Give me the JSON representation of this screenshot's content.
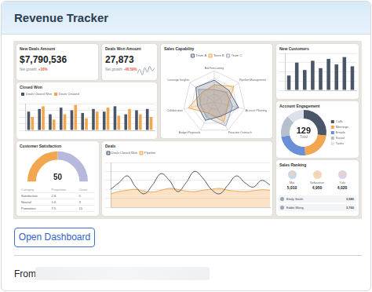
{
  "header": {
    "title": "Revenue Tracker"
  },
  "dashboard": {
    "kpis": [
      {
        "title": "New Deals Amount",
        "value": "$7,790,536",
        "growth_label": "Net growth",
        "growth": "+16%"
      },
      {
        "title": "Deals Won Amount",
        "value": "27,873",
        "growth_label": "Net growth",
        "growth": "-46.59%"
      }
    ],
    "satisfaction_table": {
      "columns": [
        "Category",
        "Proportion",
        "Count"
      ],
      "rows": [
        [
          "Satisfaction",
          "2.6",
          "5"
        ],
        [
          "Neutral",
          "1.6",
          "3"
        ],
        [
          "Promoters",
          "7.5",
          "15"
        ]
      ]
    },
    "sales_ranking": {
      "title": "Sales Ranking",
      "top": [
        {
          "name": "Mia",
          "amount": "5,010"
        },
        {
          "name": "Sebastian",
          "amount": "4,950"
        },
        {
          "name": "Yuki",
          "amount": "4,020"
        }
      ],
      "list": [
        {
          "name": "Emily Smith",
          "amount": "3,980"
        },
        {
          "name": "Eddie Wong",
          "amount": "3,760"
        }
      ]
    }
  },
  "chart_data": [
    {
      "type": "line",
      "categories": [
        null,
        null,
        null,
        null,
        null,
        null,
        null,
        null
      ],
      "values": [
        3,
        6,
        2,
        7,
        4,
        8,
        5,
        7
      ],
      "color": "#9aa3ad",
      "ylim": [
        0,
        10
      ],
      "grid": false,
      "tick_labels": false
    },
    {
      "type": "bar",
      "title": "Closed Won",
      "categories": [
        null,
        null,
        null,
        null,
        null,
        null,
        null,
        null,
        null,
        null,
        null,
        null
      ],
      "series": [
        {
          "name": "Deals Closed Won",
          "color": "#4a5568",
          "values": [
            70,
            80,
            60,
            85,
            75,
            65,
            80,
            70,
            90,
            60,
            75,
            80
          ]
        },
        {
          "name": "Deals Created",
          "color": "#f2a650",
          "values": [
            50,
            90,
            40,
            60,
            95,
            45,
            70,
            85,
            55,
            80,
            60,
            50
          ]
        }
      ],
      "ylim": [
        0,
        100
      ],
      "yticks": [
        0,
        25,
        50,
        75,
        100
      ],
      "grid": true,
      "legend": "top",
      "tick_labels": false
    },
    {
      "type": "radar",
      "title": "Sales Capability",
      "categories": [
        "Bid Forecasting",
        "Pipeline Management",
        "Account Planning",
        "Proactive Outreach",
        "Budget Proposals",
        "Collaboration",
        "Leverage Insights"
      ],
      "series": [
        {
          "name": "Team A",
          "color": "#5a6b85",
          "values": [
            70,
            60,
            80,
            50,
            65,
            55,
            75
          ]
        },
        {
          "name": "Team B",
          "color": "#f2a650",
          "values": [
            55,
            80,
            45,
            70,
            40,
            85,
            50
          ]
        },
        {
          "name": "Team C",
          "color": "#a0a8b8",
          "values": [
            40,
            50,
            60,
            85,
            55,
            45,
            65
          ]
        }
      ],
      "ylim": [
        0,
        100
      ],
      "yticks": [
        0,
        25,
        50,
        75,
        100
      ],
      "grid": true,
      "legend": "top",
      "tick_labels": false
    },
    {
      "type": "bar",
      "title": "New Customers",
      "categories": [
        null,
        null,
        null,
        null,
        null,
        null,
        null,
        null,
        null
      ],
      "values": [
        40,
        75,
        55,
        80,
        60,
        85,
        70,
        90,
        65
      ],
      "color": "#4a5568",
      "ylim": [
        0,
        100
      ],
      "yticks": [
        0,
        25,
        50,
        75,
        100
      ],
      "grid": true,
      "tick_labels": false
    },
    {
      "type": "doughnut",
      "title": "Account Engagement",
      "categories": [
        "Calls",
        "Meetings",
        "Emails",
        "Social",
        "Tasks"
      ],
      "values": [
        35,
        28,
        30,
        20,
        16
      ],
      "colors": [
        "#4a5568",
        "#f2a650",
        "#6b8fd6",
        "#b8bfcc",
        "#dde2ea"
      ],
      "center_value": 129,
      "center_label": "Total",
      "legend": "right"
    },
    {
      "type": "gauge",
      "title": "Customer Satisfaction",
      "value": 50,
      "ylim": [
        0,
        100
      ],
      "colors": [
        "#f2a650",
        "#b7b9dc"
      ]
    },
    {
      "type": "line",
      "title": "Deals",
      "categories": [
        null,
        null,
        null,
        null,
        null,
        null,
        null,
        null,
        null,
        null,
        null,
        null,
        null,
        null,
        null,
        null,
        null,
        null,
        null,
        null
      ],
      "series": [
        {
          "name": "Deals Closed Won",
          "color": "#4a5568",
          "values": [
            40,
            55,
            70,
            45,
            30,
            50,
            75,
            60,
            35,
            55,
            80,
            65,
            40,
            30,
            50,
            70,
            55,
            45,
            60,
            50
          ]
        },
        {
          "name": "Pipeline",
          "color": "#f2a650",
          "values": [
            30,
            35,
            38,
            40,
            36,
            34,
            38,
            42,
            40,
            36,
            35,
            38,
            40,
            42,
            38,
            36,
            35,
            37,
            39,
            38
          ]
        }
      ],
      "ylim": [
        0,
        100
      ],
      "yticks": [
        0,
        20,
        40,
        60,
        80,
        100
      ],
      "grid": true,
      "legend": "top",
      "tick_labels": false
    }
  ],
  "button": "Open Dashboard",
  "footer": {
    "label": "From"
  }
}
